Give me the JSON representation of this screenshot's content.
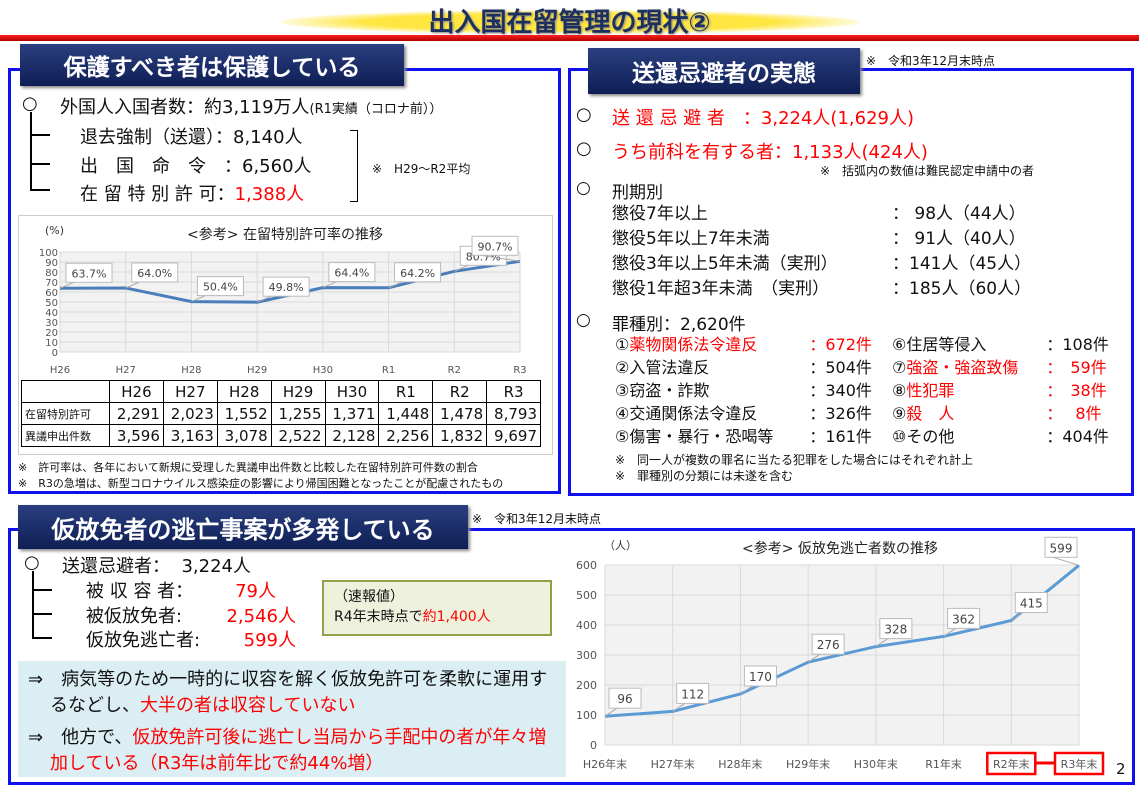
{
  "title": "出入国在留管理の現状②",
  "page_number": "2",
  "protected": {
    "header": "保護すべき者は保護している",
    "entrants": {
      "bullet": "○",
      "label": "外国人入国者数：約3,119万人",
      "note": "(R1実績（コロナ前））"
    },
    "items": [
      {
        "label": "退去強制（送還）：",
        "value": "8,140人"
      },
      {
        "label": "出　国　命　令　：",
        "value": "6,560人"
      },
      {
        "label": "在 留 特 別 許 可：",
        "value": "1,388人"
      }
    ],
    "average_note": "※　H29～R2平均",
    "footnotes": [
      "※　許可率は、各年において新規に受理した異議申出件数と比較した在留特別許可件数の割合",
      "※　R3の急増は、新型コロナウイルス感染症の影響により帰国困難となったことが配慮されたもの"
    ],
    "table": {
      "columns": [
        "",
        "H26",
        "H27",
        "H28",
        "H29",
        "H30",
        "R1",
        "R2",
        "R3"
      ],
      "rows": [
        {
          "label": "在留特別許可",
          "values": [
            "2,291",
            "2,023",
            "1,552",
            "1,255",
            "1,371",
            "1,448",
            "1,478",
            "8,793"
          ]
        },
        {
          "label": "異議申出件数",
          "values": [
            "3,596",
            "3,163",
            "3,078",
            "2,522",
            "2,128",
            "2,256",
            "1,832",
            "9,697"
          ]
        }
      ]
    }
  },
  "evasion": {
    "header": "送還忌避者の実態",
    "as_of": "※　令和3年12月末時点",
    "lines": [
      {
        "label": "送 還 忌 避 者　：",
        "value": "3,224人(1,629人)"
      },
      {
        "label": "うち前科を有する者：",
        "value": "1,133人(424人)"
      }
    ],
    "paren_note": "※　括弧内の数値は難民認定申請中の者",
    "sentence_header": "刑期別",
    "sentences": [
      {
        "label": "懲役7年以上",
        "value": "：  98人（44人）"
      },
      {
        "label": "懲役5年以上7年未満",
        "value": "：  91人（40人）"
      },
      {
        "label": "懲役3年以上5年未満（実刑）",
        "value": "：141人（45人）"
      },
      {
        "label": "懲役1年超3年未満　（実刑）",
        "value": "：185人（60人）"
      }
    ],
    "crime_header": "罪種別：2,620件",
    "crimes_left": [
      {
        "num": "①",
        "label": "薬物関係法令違反",
        "value": "：672件",
        "highlight": true
      },
      {
        "num": "②",
        "label": "入管法違反",
        "value": "：504件",
        "highlight": false
      },
      {
        "num": "③",
        "label": "窃盗・詐欺",
        "value": "：340件",
        "highlight": false
      },
      {
        "num": "④",
        "label": "交通関係法令違反",
        "value": "：326件",
        "highlight": false
      },
      {
        "num": "⑤",
        "label": "傷害・暴行・恐喝等",
        "value": "：161件",
        "highlight": false
      }
    ],
    "crimes_right": [
      {
        "num": "⑥",
        "label": "住居等侵入",
        "value": "：108件",
        "highlight": false
      },
      {
        "num": "⑦",
        "label": "強盗・強盗致傷",
        "value": "：　59件",
        "highlight": true
      },
      {
        "num": "⑧",
        "label": "性犯罪",
        "value": "：　38件",
        "highlight": true
      },
      {
        "num": "⑨",
        "label": "殺　人",
        "value": "：　 8件",
        "highlight": true
      },
      {
        "num": "⑩",
        "label": "その他",
        "value": "：404件",
        "highlight": false
      }
    ],
    "footnotes": [
      "※　同一人が複数の罪名に当たる犯罪をした場合にはそれぞれ計上",
      "※　罪種別の分類には未遂を含む"
    ]
  },
  "absconding": {
    "header": "仮放免者の逃亡事案が多発している",
    "as_of": "※　令和3年12月末時点",
    "total": {
      "label": "送還忌避者：",
      "value": "3,224人"
    },
    "items": [
      {
        "label": "被 収 容 者：",
        "value": "79人"
      },
      {
        "label": "被仮放免者:",
        "value": "2,546人"
      },
      {
        "label": "仮放免逃亡者:",
        "value": "599人"
      }
    ],
    "callout": {
      "line1": "（速報値）",
      "line2": "R4年末時点で",
      "value": "約1,400人"
    },
    "conclusions": [
      {
        "arrow": "⇒",
        "text": "　病気等のため一時的に収容を解く仮放免許可を柔軟に運用するなどし、",
        "red": "大半の者は収容していない"
      },
      {
        "arrow": "⇒",
        "text": "　他方で、",
        "red": "仮放免許可後に逃亡し当局から手配中の者が年々増加している（R3年は前年比で約44%増）"
      }
    ]
  },
  "chart_data": [
    {
      "type": "line",
      "title": "<参考> 在留特別許可率の推移",
      "ylabel": "(%)",
      "categories": [
        "H26",
        "H27",
        "H28",
        "H29",
        "H30",
        "R1",
        "R2",
        "R3"
      ],
      "values": [
        63.7,
        64.0,
        50.4,
        49.8,
        64.4,
        64.2,
        80.7,
        90.7
      ],
      "data_labels": [
        "63.7%",
        "64.0%",
        "50.4%",
        "49.8%",
        "64.4%",
        "64.2%",
        "80.7%",
        "90.7%"
      ],
      "yticks": [
        0,
        10,
        20,
        30,
        40,
        50,
        60,
        70,
        80,
        90,
        100
      ],
      "ylim": [
        0,
        100
      ],
      "grid": true,
      "color": "#4a7ebb"
    },
    {
      "type": "line",
      "title": "<参考> 仮放免逃亡者数の推移",
      "ylabel": "（人）",
      "categories": [
        "H26年末",
        "H27年末",
        "H28年末",
        "H29年末",
        "H30年末",
        "R1年末",
        "R2年末",
        "R3年末"
      ],
      "values": [
        96,
        112,
        170,
        276,
        328,
        362,
        415,
        599
      ],
      "data_labels": [
        "96",
        "112",
        "170",
        "276",
        "328",
        "362",
        "415",
        "599"
      ],
      "yticks": [
        0,
        100,
        200,
        300,
        400,
        500,
        600
      ],
      "ylim": [
        0,
        600
      ],
      "grid": true,
      "highlighted_categories": [
        "R2年末",
        "R3年末"
      ],
      "color": "#5b9bd5"
    }
  ]
}
